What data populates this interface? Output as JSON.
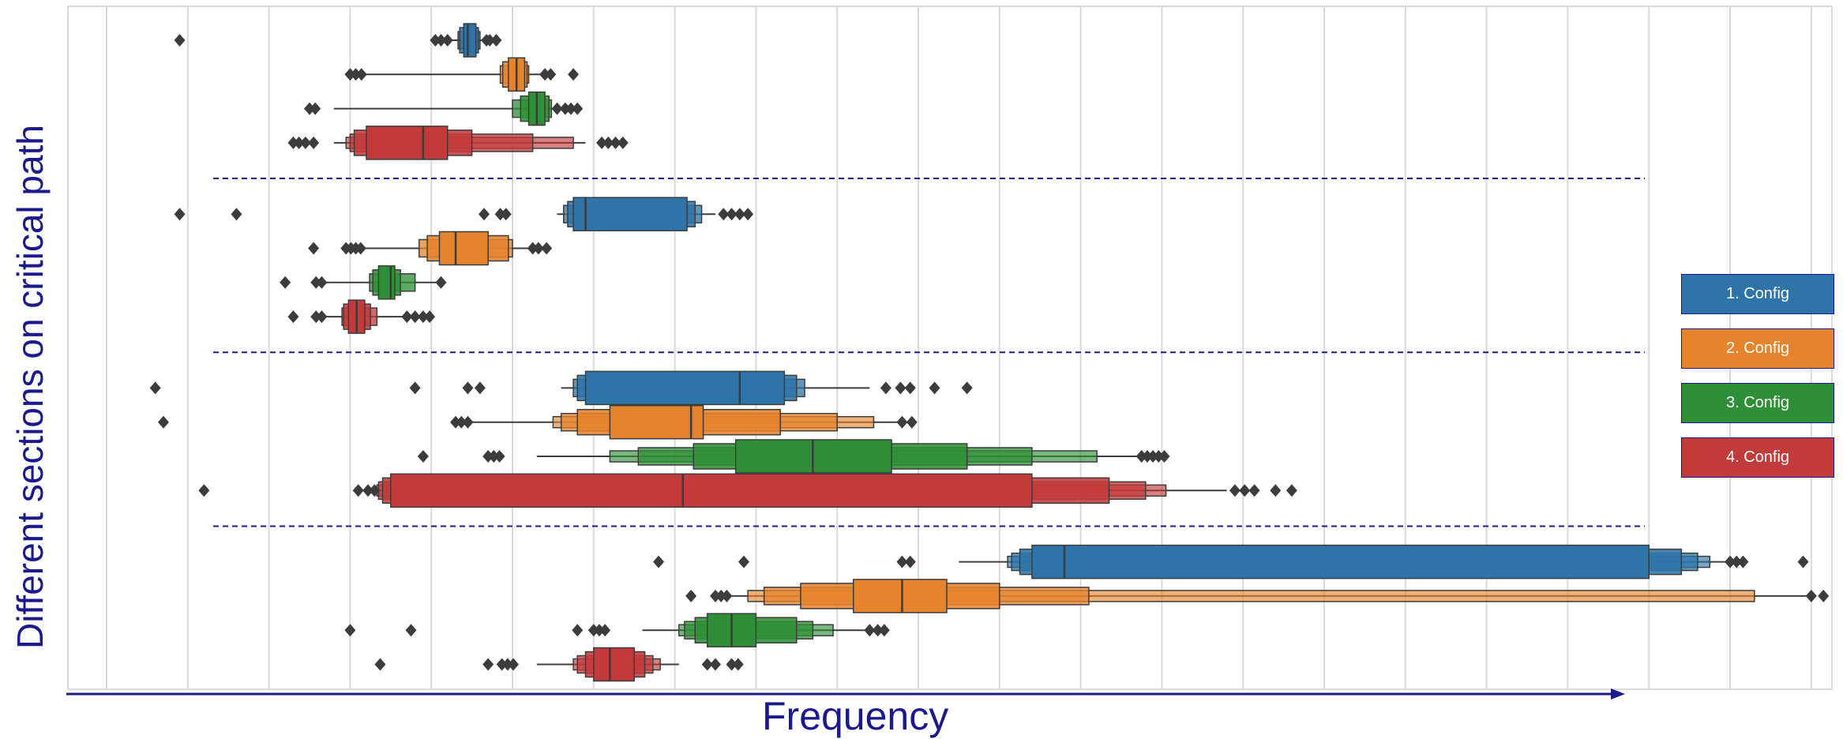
{
  "xlabel": "Frequency",
  "ylabel": "Different sections on critical path",
  "colors": {
    "grid": "#d9d9d9",
    "axis_arrow": "#1a1a8c",
    "separator": "#1a1a8c",
    "outlier": "#3c3c3c",
    "median": "#3c3c3c"
  },
  "legend": {
    "placement": "right",
    "entries": [
      {
        "label": "1. Config",
        "color": "#2e74a8"
      },
      {
        "label": "2. Config",
        "color": "#e6832d"
      },
      {
        "label": "3. Config",
        "color": "#2f8f36"
      },
      {
        "label": "4. Config",
        "color": "#c33a3a"
      }
    ]
  },
  "chart_data": {
    "type": "boxen",
    "orientation": "horizontal",
    "grid": "vertical",
    "xlim": [
      -0.5,
      21.3
    ],
    "x_ticks": [
      0,
      1,
      2,
      3,
      4,
      5,
      6,
      7,
      8,
      9,
      10,
      11,
      12,
      13,
      14,
      15,
      16,
      17,
      18,
      19,
      20,
      21
    ],
    "groups": 4,
    "rows": [
      {
        "group": 1,
        "series": 0,
        "color": "#2e74a8",
        "median": 4.45,
        "boxes": [
          [
            4.4,
            4.55
          ],
          [
            4.35,
            4.58
          ],
          [
            4.33,
            4.6
          ]
        ],
        "whiskers": [
          4.2,
          4.75
        ],
        "outliers": [
          0.9,
          4.05,
          4.12,
          4.2,
          4.68,
          4.72,
          4.8
        ]
      },
      {
        "group": 1,
        "series": 1,
        "color": "#e6832d",
        "median": 5.05,
        "boxes": [
          [
            4.95,
            5.15
          ],
          [
            4.88,
            5.18
          ],
          [
            4.85,
            5.2
          ]
        ],
        "whiskers": [
          3.2,
          5.4
        ],
        "outliers": [
          3.0,
          3.07,
          3.14,
          5.4,
          5.47,
          5.75
        ]
      },
      {
        "group": 1,
        "series": 2,
        "color": "#2f8f36",
        "median": 5.3,
        "boxes": [
          [
            5.2,
            5.4
          ],
          [
            5.1,
            5.45
          ],
          [
            5.0,
            5.48
          ]
        ],
        "whiskers": [
          2.8,
          5.55
        ],
        "outliers": [
          2.5,
          2.57,
          5.55,
          5.65,
          5.72,
          5.8
        ]
      },
      {
        "group": 1,
        "series": 3,
        "color": "#c33a3a",
        "median": 3.9,
        "boxes": [
          [
            3.2,
            4.2
          ],
          [
            3.05,
            4.5
          ],
          [
            3.0,
            5.25
          ],
          [
            2.95,
            5.75
          ]
        ],
        "whiskers": [
          2.8,
          5.9
        ],
        "outliers": [
          2.3,
          2.37,
          2.45,
          2.55,
          6.1,
          6.18,
          6.27,
          6.36
        ]
      },
      {
        "group": 2,
        "series": 0,
        "color": "#2e74a8",
        "median": 5.9,
        "boxes": [
          [
            5.75,
            7.15
          ],
          [
            5.68,
            7.25
          ],
          [
            5.63,
            7.33
          ]
        ],
        "whiskers": [
          5.55,
          7.5
        ],
        "outliers": [
          0.9,
          1.6,
          4.65,
          4.85,
          4.92,
          7.6,
          7.7,
          7.8,
          7.9
        ]
      },
      {
        "group": 2,
        "series": 1,
        "color": "#e6832d",
        "median": 4.3,
        "boxes": [
          [
            4.1,
            4.7
          ],
          [
            3.95,
            4.95
          ],
          [
            3.85,
            5.0
          ]
        ],
        "whiskers": [
          3.1,
          5.3
        ],
        "outliers": [
          2.55,
          2.95,
          3.01,
          3.07,
          3.13,
          5.25,
          5.32,
          5.42
        ]
      },
      {
        "group": 2,
        "series": 2,
        "color": "#2f8f36",
        "median": 3.5,
        "boxes": [
          [
            3.35,
            3.55
          ],
          [
            3.28,
            3.62
          ],
          [
            3.24,
            3.8
          ]
        ],
        "whiskers": [
          2.6,
          4.1
        ],
        "outliers": [
          2.2,
          2.58,
          2.65,
          4.12
        ]
      },
      {
        "group": 2,
        "series": 3,
        "color": "#c33a3a",
        "median": 3.08,
        "boxes": [
          [
            2.98,
            3.18
          ],
          [
            2.92,
            3.25
          ],
          [
            2.9,
            3.33
          ]
        ],
        "whiskers": [
          2.65,
          3.65
        ],
        "outliers": [
          2.3,
          2.58,
          2.65,
          3.7,
          3.8,
          3.9,
          3.98
        ]
      },
      {
        "group": 3,
        "series": 0,
        "color": "#2e74a8",
        "median": 7.8,
        "boxes": [
          [
            5.9,
            8.35
          ],
          [
            5.8,
            8.5
          ],
          [
            5.75,
            8.6
          ]
        ],
        "whiskers": [
          5.6,
          9.4
        ],
        "outliers": [
          0.6,
          3.8,
          4.45,
          4.6,
          9.6,
          9.78,
          9.9,
          10.2,
          10.6
        ]
      },
      {
        "group": 3,
        "series": 1,
        "color": "#e6832d",
        "median": 7.2,
        "boxes": [
          [
            6.2,
            7.35
          ],
          [
            5.8,
            8.3
          ],
          [
            5.6,
            9.0
          ],
          [
            5.5,
            9.45
          ]
        ],
        "whiskers": [
          4.5,
          9.9
        ],
        "outliers": [
          0.7,
          4.3,
          4.37,
          4.45,
          9.8,
          9.92
        ]
      },
      {
        "group": 3,
        "series": 2,
        "color": "#2f8f36",
        "median": 8.7,
        "boxes": [
          [
            7.75,
            9.67
          ],
          [
            7.23,
            10.6
          ],
          [
            6.55,
            11.4
          ],
          [
            6.2,
            12.2
          ]
        ],
        "whiskers": [
          5.3,
          12.75
        ],
        "outliers": [
          3.9,
          4.7,
          4.77,
          4.84,
          12.75,
          12.82,
          12.89,
          12.96,
          13.03
        ]
      },
      {
        "group": 3,
        "series": 3,
        "color": "#c33a3a",
        "median": 7.1,
        "boxes": [
          [
            3.5,
            11.4
          ],
          [
            3.4,
            12.35
          ],
          [
            3.35,
            12.8
          ],
          [
            3.33,
            13.05
          ]
        ],
        "whiskers": [
          3.3,
          13.8
        ],
        "outliers": [
          1.2,
          3.1,
          3.22,
          3.3,
          13.9,
          14.02,
          14.14,
          14.4,
          14.6
        ]
      },
      {
        "group": 4,
        "series": 0,
        "color": "#2e74a8",
        "median": 11.8,
        "boxes": [
          [
            11.4,
            19.0
          ],
          [
            11.25,
            19.4
          ],
          [
            11.15,
            19.6
          ],
          [
            11.1,
            19.75
          ]
        ],
        "whiskers": [
          10.5,
          20.0
        ],
        "outliers": [
          6.8,
          7.85,
          9.8,
          9.9,
          20.0,
          20.08,
          20.16,
          20.9
        ]
      },
      {
        "group": 4,
        "series": 1,
        "color": "#e6832d",
        "median": 9.8,
        "boxes": [
          [
            9.2,
            10.35
          ],
          [
            8.55,
            11.0
          ],
          [
            8.1,
            12.1
          ],
          [
            7.9,
            20.3
          ]
        ],
        "whiskers": [
          7.6,
          21.0
        ],
        "outliers": [
          7.2,
          7.5,
          7.57,
          7.64,
          21.0,
          21.15
        ]
      },
      {
        "group": 4,
        "series": 2,
        "color": "#2f8f36",
        "median": 7.7,
        "boxes": [
          [
            7.4,
            8.0
          ],
          [
            7.25,
            8.5
          ],
          [
            7.12,
            8.7
          ],
          [
            7.05,
            8.95
          ]
        ],
        "whiskers": [
          6.6,
          9.4
        ],
        "outliers": [
          3.0,
          3.75,
          5.8,
          6.0,
          6.07,
          6.14,
          9.4,
          9.5,
          9.58
        ]
      },
      {
        "group": 4,
        "series": 3,
        "color": "#c33a3a",
        "median": 6.2,
        "boxes": [
          [
            6.0,
            6.5
          ],
          [
            5.9,
            6.63
          ],
          [
            5.8,
            6.73
          ],
          [
            5.75,
            6.82
          ]
        ],
        "whiskers": [
          5.3,
          7.05
        ],
        "outliers": [
          3.37,
          4.7,
          4.87,
          4.94,
          5.01,
          7.4,
          7.5,
          7.7,
          7.78
        ]
      }
    ]
  }
}
